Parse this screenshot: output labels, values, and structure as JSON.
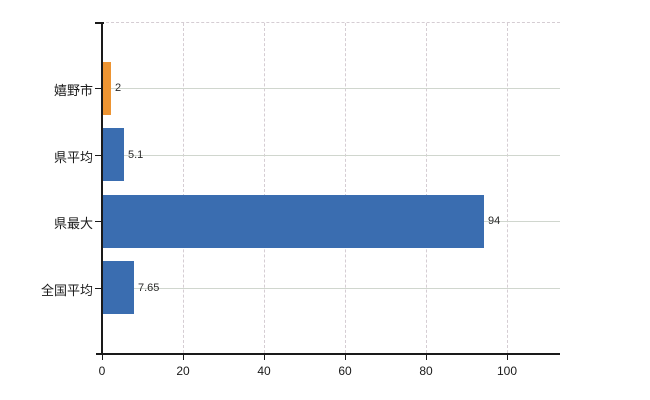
{
  "chart_data": {
    "type": "bar",
    "orientation": "horizontal",
    "title": "",
    "categories": [
      "嬉野市",
      "県平均",
      "県最大",
      "全国平均"
    ],
    "values": [
      2,
      5.1,
      94,
      7.65
    ],
    "value_labels": [
      "2",
      "5.1",
      "94",
      "7.65"
    ],
    "bar_colors": [
      "#ED9432",
      "#3A6DB0",
      "#3A6DB0",
      "#3A6DB0"
    ],
    "x_ticks": [
      0,
      20,
      40,
      60,
      80,
      100
    ],
    "x_tick_labels": [
      "0",
      "20",
      "40",
      "60",
      "80",
      "100"
    ],
    "xlim": [
      0,
      113
    ],
    "grid": true,
    "legend": false
  },
  "colors": {
    "bar_blue": "#3A6DB0",
    "bar_orange": "#ED9432",
    "axis": "#1a1a1a",
    "grid_horizontal": "#d0d6ce",
    "grid_vertical": "#d5cdd3",
    "background": "#ffffff",
    "tick_label": "#1a1a1a",
    "value_label": "#2a2a2a"
  }
}
